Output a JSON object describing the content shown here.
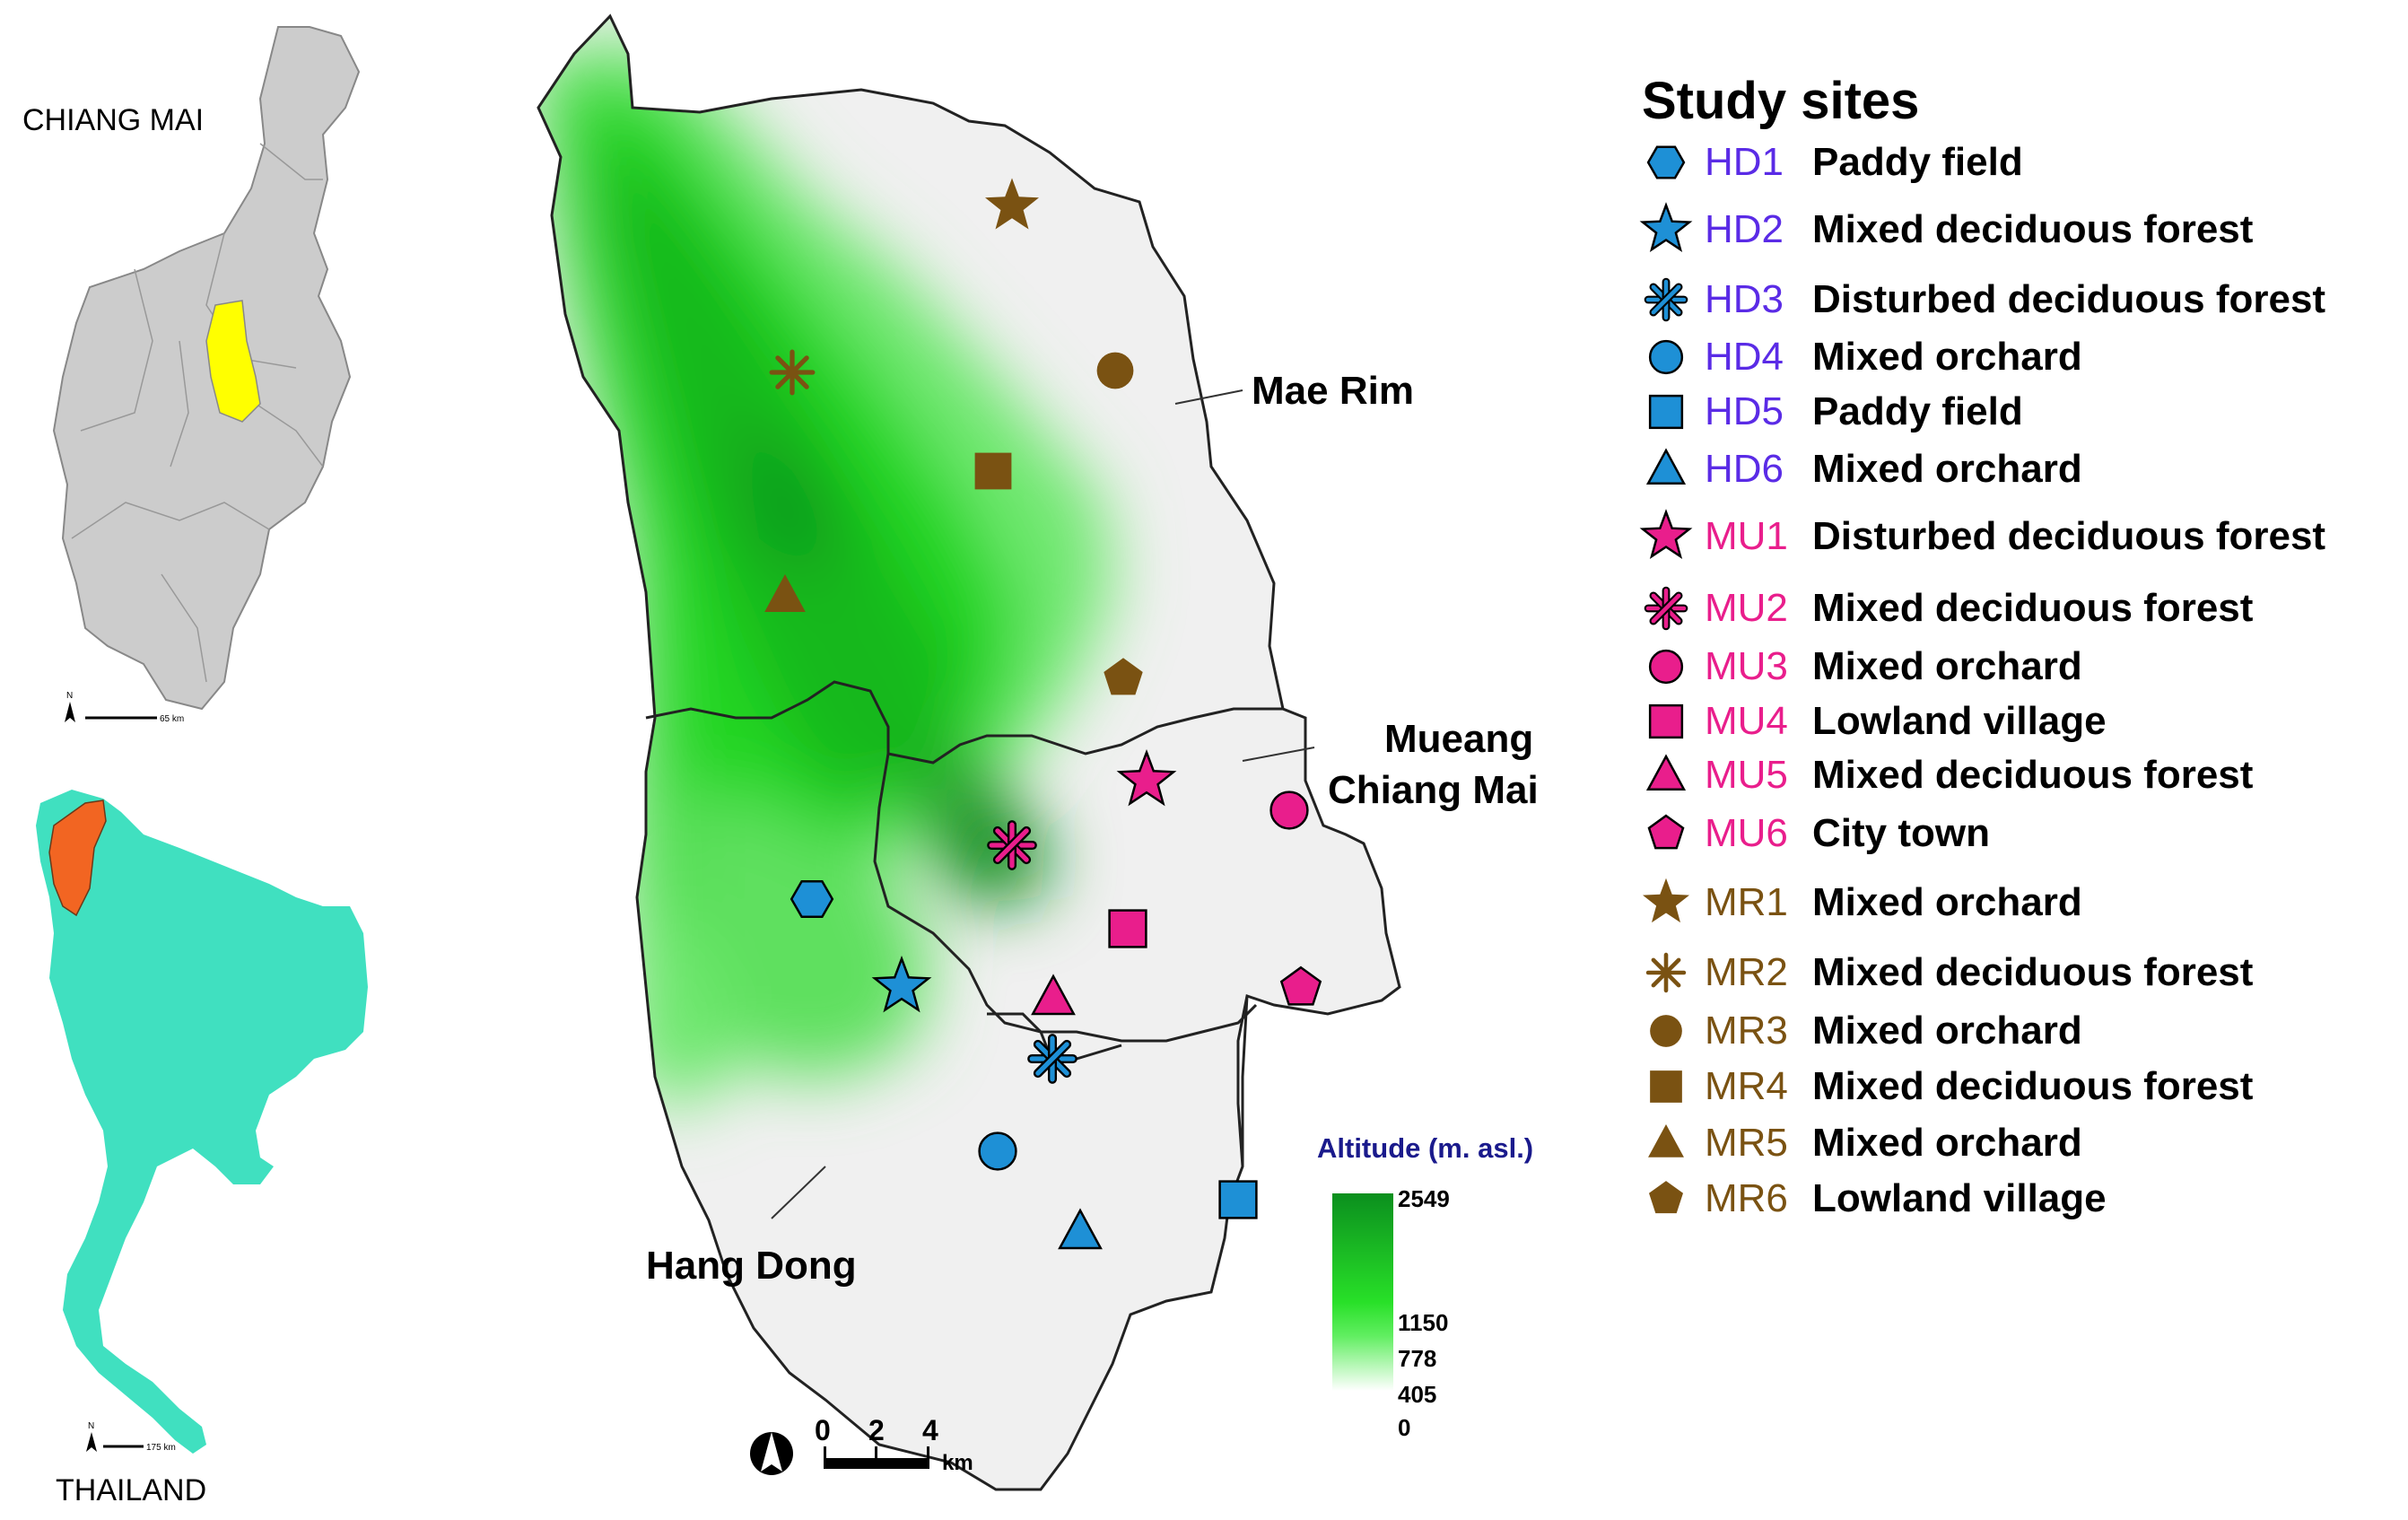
{
  "insets": {
    "province_name": "CHIANG MAI",
    "province_scale": "65 km",
    "country_name": "THAILAND",
    "country_scale": "175 km",
    "north_letter": "N"
  },
  "districts": {
    "mae_rim": "Mae Rim",
    "mueang_line1": "Mueang",
    "mueang_line2": "Chiang Mai",
    "hang_dong": "Hang Dong"
  },
  "scale_bar": {
    "ticks": [
      "0",
      "2",
      "4"
    ],
    "unit": "km"
  },
  "altitude": {
    "title": "Altitude (m. asl.)",
    "ticks": [
      "2549",
      "1150",
      "778",
      "405",
      "0"
    ]
  },
  "colors": {
    "hd": "#1e90d6",
    "mu": "#e91e8c",
    "mr": "#7a5212",
    "hd_text": "#5a2be6",
    "mu_text": "#e91e8c",
    "mr_text": "#7a5212",
    "terrain_high": "#0b8f1e",
    "terrain_mid": "#28e028",
    "terrain_low": "#eefaee",
    "land": "#f0f0f0",
    "province": "#cccccc",
    "selected_district": "#ffff00",
    "country": "#40e0c0",
    "north_region": "#f26522"
  },
  "legend": {
    "title": "Study sites",
    "items": [
      {
        "code": "HD1",
        "label": "Paddy field",
        "shape": "hexagon",
        "group": "hd"
      },
      {
        "code": "HD2",
        "label": "Mixed deciduous forest",
        "shape": "star",
        "group": "hd"
      },
      {
        "code": "HD3",
        "label": "Disturbed deciduous forest",
        "shape": "asterisk",
        "group": "hd"
      },
      {
        "code": "HD4",
        "label": "Mixed orchard",
        "shape": "circle",
        "group": "hd"
      },
      {
        "code": "HD5",
        "label": "Paddy field",
        "shape": "square",
        "group": "hd"
      },
      {
        "code": "HD6",
        "label": "Mixed orchard",
        "shape": "triangle",
        "group": "hd"
      },
      {
        "code": "MU1",
        "label": "Disturbed deciduous forest",
        "shape": "star",
        "group": "mu"
      },
      {
        "code": "MU2",
        "label": "Mixed deciduous forest",
        "shape": "asterisk",
        "group": "mu"
      },
      {
        "code": "MU3",
        "label": "Mixed orchard",
        "shape": "circle",
        "group": "mu"
      },
      {
        "code": "MU4",
        "label": "Lowland village",
        "shape": "square",
        "group": "mu"
      },
      {
        "code": "MU5",
        "label": "Mixed deciduous forest",
        "shape": "triangle",
        "group": "mu"
      },
      {
        "code": "MU6",
        "label": "City town",
        "shape": "pentagon",
        "group": "mu"
      },
      {
        "code": "MR1",
        "label": "Mixed orchard",
        "shape": "star",
        "group": "mr"
      },
      {
        "code": "MR2",
        "label": "Mixed deciduous forest",
        "shape": "asterisk",
        "group": "mr"
      },
      {
        "code": "MR3",
        "label": "Mixed orchard",
        "shape": "circle",
        "group": "mr"
      },
      {
        "code": "MR4",
        "label": "Mixed deciduous forest",
        "shape": "square",
        "group": "mr"
      },
      {
        "code": "MR5",
        "label": "Mixed orchard",
        "shape": "triangle",
        "group": "mr"
      },
      {
        "code": "MR6",
        "label": "Lowland village",
        "shape": "pentagon",
        "group": "mr"
      }
    ]
  }
}
